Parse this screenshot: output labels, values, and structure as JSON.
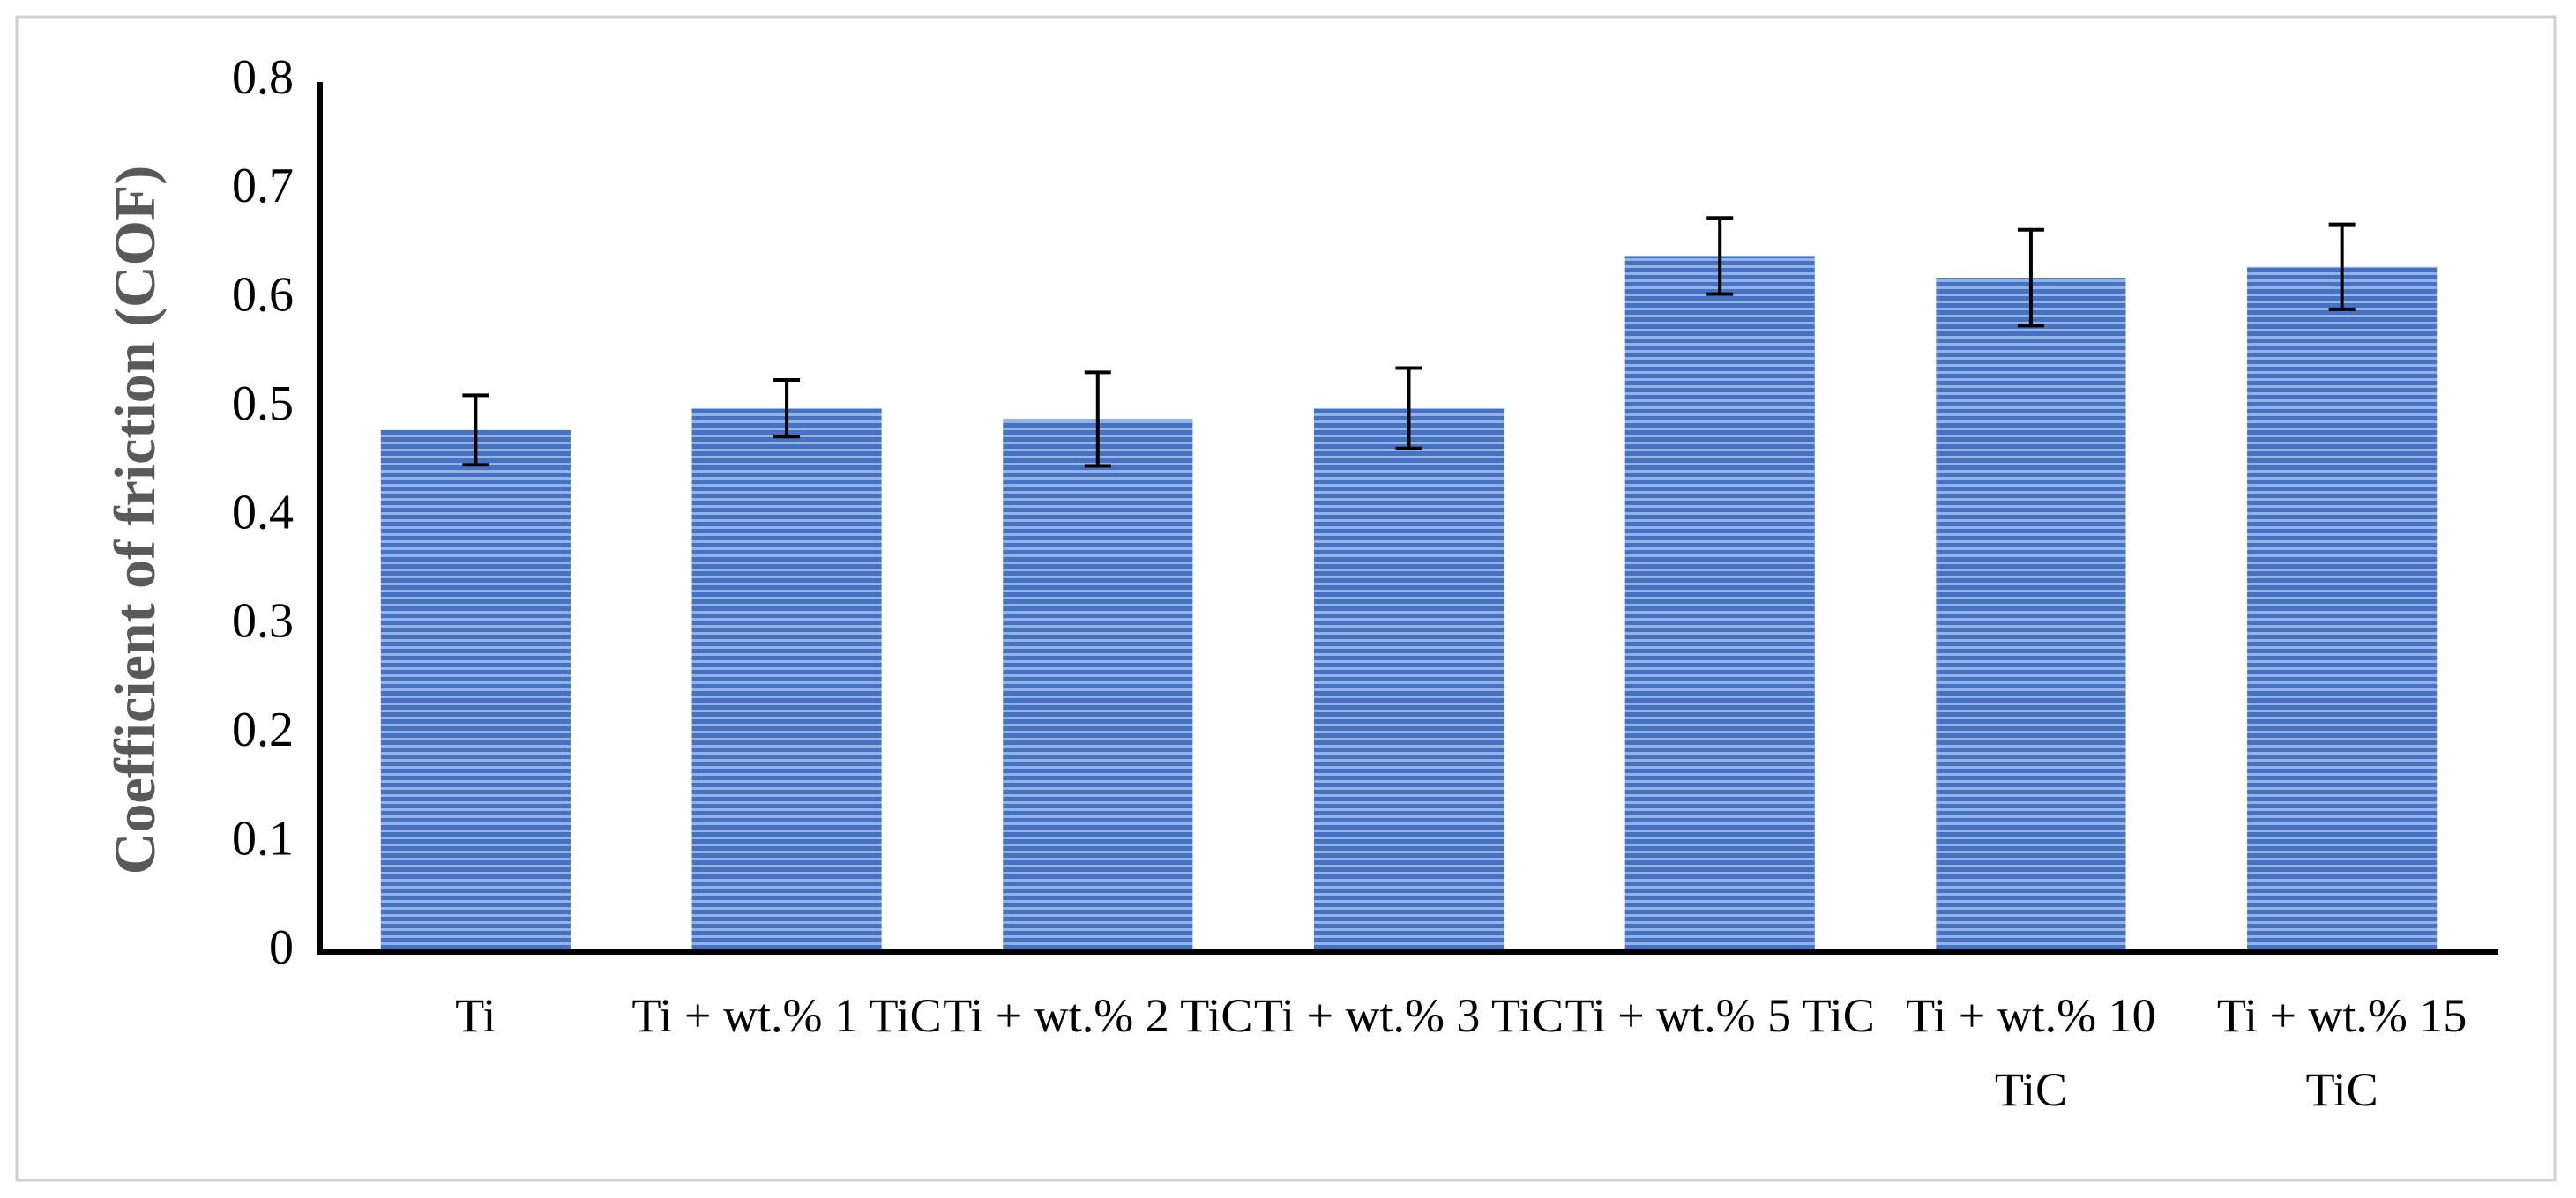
{
  "chart_data": {
    "type": "bar",
    "y_axis_label": "Coefficient of friction (COF)",
    "categories": [
      "Ti",
      "Ti + wt.% 1 TiC",
      "Ti + wt.% 2 TiC",
      "Ti + wt.% 3 TiC",
      "Ti + wt.% 5 TiC",
      "Ti + wt.% 10 TiC",
      "Ti + wt.% 15 TiC"
    ],
    "values": [
      0.48,
      0.5,
      0.49,
      0.5,
      0.64,
      0.62,
      0.63
    ],
    "errors": [
      0.032,
      0.026,
      0.043,
      0.037,
      0.035,
      0.044,
      0.039
    ],
    "color": "#4472c4",
    "ylim": [
      0,
      0.8
    ],
    "yticks": [
      0,
      0.1,
      0.2,
      0.3,
      0.4,
      0.5,
      0.6,
      0.7,
      0.8
    ],
    "grid": false
  }
}
